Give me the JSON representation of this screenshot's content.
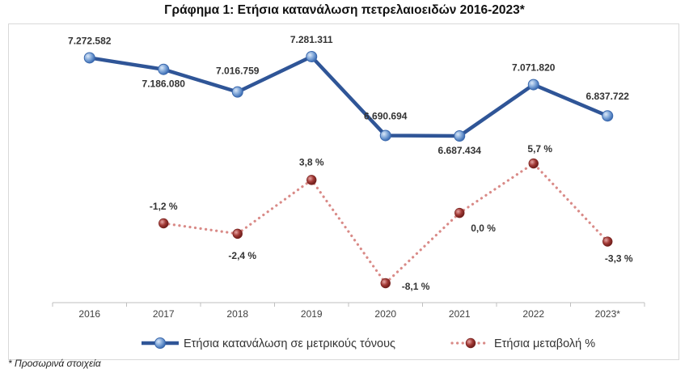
{
  "title": "Γράφημα 1: Ετήσια κατανάλωση πετρελαιοειδών 2016-2023*",
  "footnote": "* Προσωρινά στοιχεία",
  "colors": {
    "consumption": "#2f5597",
    "change": "#c0504d",
    "axis": "#bfbfbf",
    "label": "#333333"
  },
  "chart_data": {
    "type": "line",
    "categories": [
      "2016",
      "2017",
      "2018",
      "2019",
      "2020",
      "2021",
      "2022",
      "2023*"
    ],
    "series": [
      {
        "name": "Ετήσια κατανάλωση σε μετρικούς τόνους",
        "values": [
          7272582,
          7186080,
          7016759,
          7281311,
          6690694,
          6687434,
          7071820,
          6837722
        ],
        "labels": [
          "7.272.582",
          "7.186.080",
          "7.016.759",
          "7.281.311",
          "6.690.694",
          "6.687.434",
          "7.071.820",
          "6.837.722"
        ],
        "style": "solid",
        "marker": "circle"
      },
      {
        "name": "Ετήσια μεταβολή %",
        "values": [
          null,
          -1.2,
          -2.4,
          3.8,
          -8.1,
          0.0,
          5.7,
          -3.3
        ],
        "labels": [
          "",
          "-1,2 %",
          "-2,4 %",
          "3,8 %",
          "-8,1 %",
          "0,0 %",
          "5,7 %",
          "-3,3 %"
        ],
        "style": "dotted",
        "marker": "circle"
      }
    ],
    "legend_position": "bottom",
    "grid": false
  }
}
